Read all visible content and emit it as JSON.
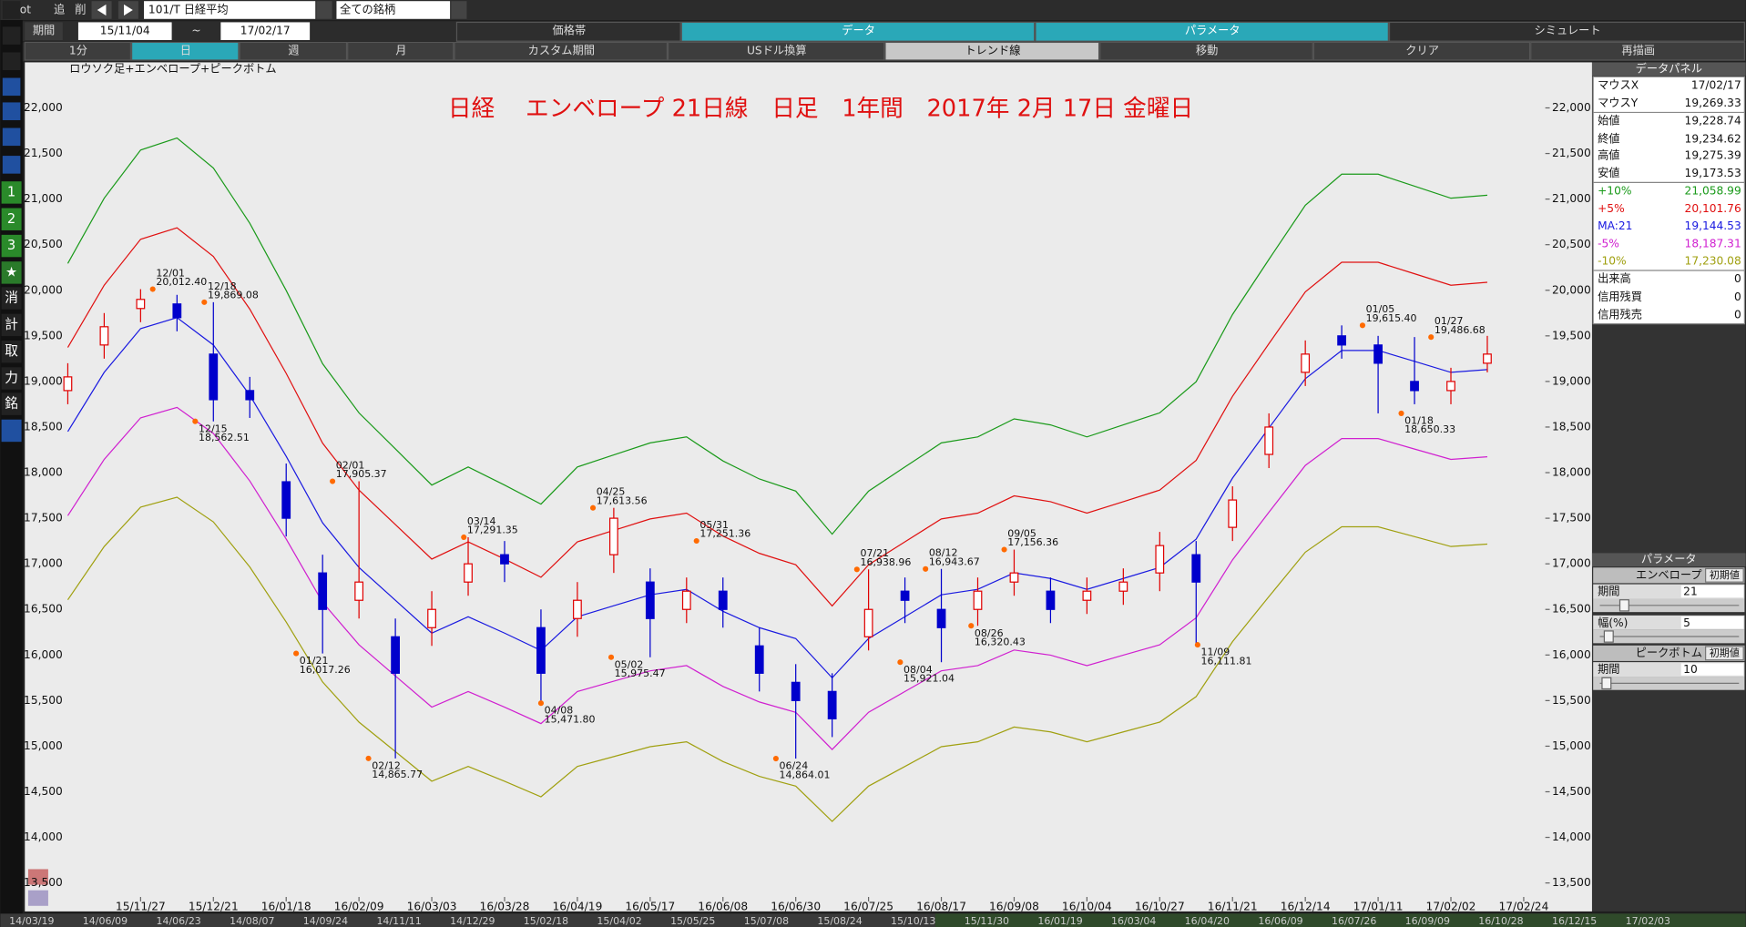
{
  "toolbar": {
    "row1": [
      "Hot",
      "追",
      "削"
    ],
    "symbol": "101/T 日経平均",
    "universe": "全ての銘柄",
    "tabs": [
      "価格帯",
      "データ",
      "パラメータ",
      "シミュレート"
    ],
    "period_label": "期間",
    "period_from": "15/11/04",
    "period_sep": "~",
    "period_to": "17/02/17",
    "buttons": [
      "1分",
      "日",
      "週",
      "月",
      "カスタム期間",
      "USドル換算",
      "トレンド線",
      "移動",
      "クリア",
      "再描画"
    ]
  },
  "sidebar": [
    "1",
    "2",
    "3",
    "★",
    "消",
    "計",
    "取",
    "力",
    "銘"
  ],
  "data_panel": {
    "title": "データパネル",
    "rows": [
      [
        "マウスX",
        "17/02/17"
      ],
      [
        "マウスY",
        "19,269.33"
      ],
      [
        "始値",
        "19,228.74"
      ],
      [
        "終値",
        "19,234.62"
      ],
      [
        "高値",
        "19,275.39"
      ],
      [
        "安値",
        "19,173.53"
      ]
    ],
    "series_values": [
      "21,058.99",
      "20,101.76",
      "19,144.53",
      "18,187.31",
      "17,230.08"
    ],
    "volume_rows": [
      [
        "出来高",
        "0"
      ],
      [
        "信用残買",
        "0"
      ],
      [
        "信用残売",
        "0"
      ]
    ]
  },
  "parameter_panel": {
    "title": "パラメータ",
    "envelope": "エンベロープ",
    "reset": "初期値",
    "period_label": "期間",
    "period": "21",
    "width_label": "幅(%)",
    "width": "5",
    "peak": "ピークボトム",
    "peak_period_label": "期間",
    "peak_period": "10"
  },
  "scrollbar_dates": [
    "14/03/19",
    "14/06/09",
    "14/06/23",
    "14/08/07",
    "14/09/24",
    "14/11/11",
    "14/12/29",
    "15/02/18",
    "15/04/02",
    "15/05/25",
    "15/07/08",
    "15/08/24",
    "15/10/13",
    "15/11/30",
    "16/01/19",
    "16/03/04",
    "16/04/20",
    "16/06/09",
    "16/07/26",
    "16/09/09",
    "16/10/28",
    "16/12/15",
    "17/02/03"
  ],
  "chart_data": {
    "type": "candlestick",
    "title": "日経　 エンベロープ 21日線　日足　1年間　2017年 2月 17日 金曜日",
    "subtitle": "ロウソク足+エンベロープ+ピークボトム",
    "categories": [
      null,
      null,
      "15/11/27",
      null,
      "15/12/21",
      null,
      "16/01/18",
      null,
      "16/02/09",
      null,
      "16/03/03",
      null,
      "16/03/28",
      null,
      "16/04/19",
      null,
      "16/05/17",
      null,
      "16/06/08",
      null,
      "16/06/30",
      null,
      "16/07/25",
      null,
      "16/08/17",
      null,
      "16/09/08",
      null,
      "16/10/04",
      null,
      "16/10/27",
      null,
      "16/11/21",
      null,
      "16/12/14",
      null,
      "17/01/11",
      null,
      "17/02/02",
      null,
      "17/02/24"
    ],
    "open": [
      18900,
      19400,
      19800,
      19850,
      19300,
      18900,
      17900,
      16900,
      16600,
      16200,
      16300,
      16800,
      17100,
      16300,
      16400,
      17100,
      16800,
      16500,
      16700,
      16100,
      15700,
      15600,
      16200,
      16700,
      16500,
      16500,
      16800,
      16700,
      16600,
      16700,
      16900,
      17100,
      17400,
      18200,
      19100,
      19500,
      19400,
      19000,
      18900,
      19200,
      null
    ],
    "high": [
      19200,
      19750,
      20012,
      19950,
      19869,
      19050,
      18100,
      17100,
      17905,
      16400,
      16700,
      17291,
      17250,
      16500,
      16800,
      17614,
      16950,
      16850,
      16850,
      16300,
      15900,
      15800,
      16939,
      16850,
      16944,
      16850,
      17156,
      16850,
      16850,
      16950,
      17350,
      17250,
      17850,
      18650,
      19450,
      19615,
      19500,
      19487,
      19150,
      19500,
      null
    ],
    "low": [
      18750,
      19250,
      19650,
      19550,
      18562,
      18600,
      17300,
      16017,
      16400,
      14866,
      16100,
      16650,
      16800,
      15472,
      16200,
      16900,
      15975,
      16350,
      16300,
      15600,
      14864,
      15100,
      16050,
      16350,
      15921,
      16320,
      16650,
      16350,
      16450,
      16550,
      16700,
      16112,
      17250,
      18050,
      18950,
      19250,
      18650,
      18750,
      18750,
      19100,
      null
    ],
    "close": [
      19050,
      19600,
      19900,
      19700,
      18800,
      18800,
      17500,
      16500,
      16800,
      15800,
      16500,
      17000,
      17000,
      15800,
      16600,
      17500,
      16400,
      16700,
      16500,
      15800,
      15500,
      15300,
      16500,
      16600,
      16300,
      16700,
      16900,
      16500,
      16700,
      16800,
      17200,
      16800,
      17700,
      18500,
      19300,
      19400,
      19200,
      18900,
      19000,
      19300,
      null
    ],
    "up_color": "#e00000",
    "down_color": "#0000cc",
    "series": [
      {
        "name": "+10%",
        "color": "#1a9a1a",
        "values": [
          20295,
          21010,
          21538,
          21670,
          21340,
          20735,
          19998,
          19195,
          18656,
          18260,
          17864,
          18062,
          17864,
          17655,
          18062,
          18194,
          18326,
          18392,
          18128,
          17930,
          17798,
          17325,
          17798,
          18062,
          18326,
          18392,
          18590,
          18524,
          18392,
          18524,
          18656,
          18997,
          19734,
          20339,
          20933,
          21274,
          21274,
          21142,
          21010,
          21043,
          null
        ]
      },
      {
        "name": "+5%",
        "color": "#e01010",
        "values": [
          19373,
          20055,
          20559,
          20685,
          20370,
          19793,
          19089,
          18323,
          17808,
          17430,
          17052,
          17241,
          17052,
          16853,
          17241,
          17367,
          17493,
          17556,
          17304,
          17115,
          16989,
          16538,
          16989,
          17241,
          17493,
          17556,
          17745,
          17682,
          17556,
          17682,
          17808,
          18134,
          18837,
          19415,
          19982,
          20307,
          20307,
          20181,
          20055,
          20087,
          null
        ]
      },
      {
        "name": "MA:21",
        "color": "#1a1ae0",
        "values": [
          18450,
          19100,
          19580,
          19700,
          19400,
          18850,
          18180,
          17450,
          16960,
          16600,
          16240,
          16420,
          16240,
          16050,
          16420,
          16540,
          16660,
          16720,
          16480,
          16300,
          16180,
          15750,
          16180,
          16420,
          16660,
          16720,
          16900,
          16840,
          16720,
          16840,
          16960,
          17270,
          17940,
          18490,
          19030,
          19340,
          19340,
          19220,
          19100,
          19130,
          null
        ]
      },
      {
        "name": "-5%",
        "color": "#d020d0",
        "values": [
          17528,
          18145,
          18601,
          18715,
          18430,
          17908,
          17271,
          16578,
          16112,
          15770,
          15428,
          15599,
          15428,
          15248,
          15599,
          15713,
          15827,
          15884,
          15656,
          15485,
          15371,
          14963,
          15371,
          15599,
          15827,
          15884,
          16055,
          15998,
          15884,
          15998,
          16112,
          16407,
          17043,
          17566,
          18079,
          18373,
          18373,
          18259,
          18145,
          18174,
          null
        ]
      },
      {
        "name": "-10%",
        "color": "#a0a010",
        "values": [
          16605,
          17190,
          17622,
          17730,
          17460,
          16965,
          16362,
          15705,
          15264,
          14940,
          14616,
          14778,
          14616,
          14445,
          14778,
          14886,
          14994,
          15048,
          14832,
          14670,
          14562,
          14175,
          14562,
          14778,
          14994,
          15048,
          15210,
          15156,
          15048,
          15156,
          15264,
          15543,
          16146,
          16641,
          17127,
          17406,
          17406,
          17298,
          17190,
          17217,
          null
        ]
      }
    ],
    "peak_labels": [
      {
        "date": "12/01",
        "value": 20012.4,
        "label": "20,012.40"
      },
      {
        "date": "12/18",
        "value": 19869.08,
        "label": "19,869.08"
      },
      {
        "date": "02/01",
        "value": 17905.37,
        "label": "17,905.37"
      },
      {
        "date": "03/14",
        "value": 17291.35,
        "label": "17,291.35"
      },
      {
        "date": "04/25",
        "value": 17613.56,
        "label": "17,613.56"
      },
      {
        "date": "05/31",
        "value": 17251.36,
        "label": "17,251.36"
      },
      {
        "date": "07/21",
        "value": 16938.96,
        "label": "16,938.96"
      },
      {
        "date": "08/12",
        "value": 16943.67,
        "label": "16,943.67"
      },
      {
        "date": "09/05",
        "value": 17156.36,
        "label": "17,156.36"
      },
      {
        "date": "01/05",
        "value": 19615.4,
        "label": "19,615.40"
      },
      {
        "date": "01/27",
        "value": 19486.68,
        "label": "19,486.68"
      }
    ],
    "bottom_labels": [
      {
        "date": "12/15",
        "value": 18562.51,
        "label": "18,562.51"
      },
      {
        "date": "01/21",
        "value": 16017.26,
        "label": "16,017.26"
      },
      {
        "date": "02/12",
        "value": 14865.77,
        "label": "14,865.77"
      },
      {
        "date": "04/08",
        "value": 15471.8,
        "label": "15,471.80"
      },
      {
        "date": "05/02",
        "value": 15975.47,
        "label": "15,975.47"
      },
      {
        "date": "06/24",
        "value": 14864.01,
        "label": "14,864.01"
      },
      {
        "date": "08/04",
        "value": 15921.04,
        "label": "15,921.04"
      },
      {
        "date": "08/26",
        "value": 16320.43,
        "label": "16,320.43"
      },
      {
        "date": "11/09",
        "value": 16111.81,
        "label": "16,111.81"
      },
      {
        "date": "01/18",
        "value": 18650.33,
        "label": "18,650.33"
      }
    ],
    "ylim": [
      13200,
      22500
    ],
    "yticks": [
      {
        "value": 13500,
        "label": "13,500"
      },
      {
        "value": 14000,
        "label": "14,000"
      },
      {
        "value": 14500,
        "label": "14,500"
      },
      {
        "value": 15000,
        "label": "15,000"
      },
      {
        "value": 15500,
        "label": "15,500"
      },
      {
        "value": 16000,
        "label": "16,000"
      },
      {
        "value": 16500,
        "label": "16,500"
      },
      {
        "value": 17000,
        "label": "17,000"
      },
      {
        "value": 17500,
        "label": "17,500"
      },
      {
        "value": 18000,
        "label": "18,000"
      },
      {
        "value": 18500,
        "label": "18,500"
      },
      {
        "value": 19000,
        "label": "19,000"
      },
      {
        "value": 19500,
        "label": "19,500"
      },
      {
        "value": 20000,
        "label": "20,000"
      },
      {
        "value": 20500,
        "label": "20,500"
      },
      {
        "value": 21000,
        "label": "21,000"
      },
      {
        "value": 21500,
        "label": "21,500"
      },
      {
        "value": 22000,
        "label": "22,000"
      }
    ],
    "grid": false
  }
}
